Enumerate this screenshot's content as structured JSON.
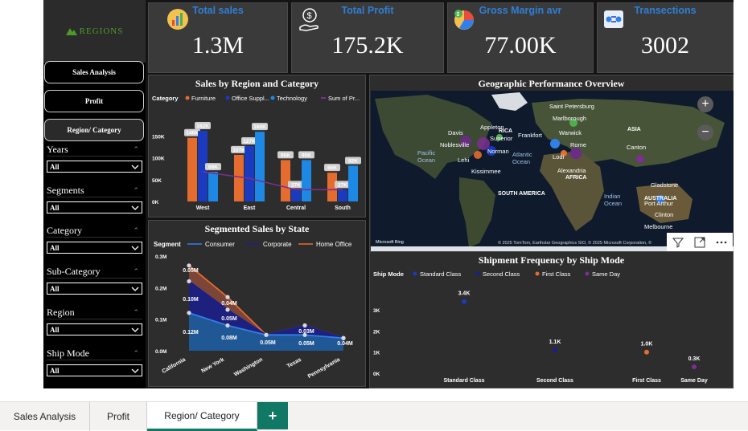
{
  "brand": {
    "logo_text": "Regions",
    "accent": "#4d9a2b"
  },
  "nav": {
    "buttons": [
      "Sales Analysis",
      "Profit",
      "Region/ Category"
    ],
    "active": "Region/ Category"
  },
  "slicers": [
    {
      "title": "Years",
      "value": "All"
    },
    {
      "title": "Segments",
      "value": "All"
    },
    {
      "title": "Category",
      "value": "All"
    },
    {
      "title": "Sub-Category",
      "value": "All"
    },
    {
      "title": "Region",
      "value": "All"
    },
    {
      "title": "Ship Mode",
      "value": "All"
    }
  ],
  "kpis": [
    {
      "title": "Total sales",
      "value": "1.3M",
      "icon": "chart-icon"
    },
    {
      "title": "Total Profit",
      "value": "175.2K",
      "icon": "money-hand-icon"
    },
    {
      "title": "Gross Margin avr",
      "value": "77.00K",
      "icon": "margin-icon"
    },
    {
      "title": "Transections",
      "value": "3002",
      "icon": "transaction-icon"
    }
  ],
  "map": {
    "title": "Geographic Performance Overview",
    "labels": [
      "Saint Petersburg",
      "Marlborough",
      "Appleton",
      "Davis",
      "RICA",
      "Frankfort",
      "Warwick",
      "ASIA",
      "Superior",
      "Noblesville",
      "Rome",
      "Canton",
      "Pacific",
      "Ocean",
      "Norman",
      "Atlantic",
      "Ocean",
      "Lodi",
      "Lehi",
      "Kissimmee",
      "Alexandria",
      "AFRICA",
      "SOUTH AMERICA",
      "Indian",
      "Ocean",
      "Gladstone",
      "AUSTRALIA",
      "Port Arthur",
      "Clinton",
      "Melbourne"
    ],
    "attribution": "© 2025 TomTom, Earthstar Geographics SIO, © 2025 Microsoft Corporation, ©",
    "bing": "Microsoft Bing"
  },
  "chart_data": [
    {
      "type": "bar",
      "title": "Sales by Region and Category",
      "legend_title": "Category",
      "categories": [
        "West",
        "East",
        "Central",
        "South"
      ],
      "series": [
        {
          "name": "Furniture",
          "values": [
            146,
            107,
            95,
            66
          ],
          "labels": [
            "146K",
            "107K",
            "95K",
            "66K"
          ]
        },
        {
          "name": "Office Suppl...",
          "values": [
            162,
            127,
            27,
            27
          ],
          "labels": [
            "162K",
            "127K",
            "27K",
            "27K"
          ]
        },
        {
          "name": "Technology",
          "values": [
            68,
            160,
            95,
            82
          ],
          "labels": [
            "68K",
            "160K",
            "95K",
            "82K"
          ]
        }
      ],
      "line": {
        "name": "Sum of Pr...",
        "values": [
          68,
          53,
          27,
          27
        ],
        "labels": [
          "68K",
          "53K",
          "27K",
          "27K"
        ]
      },
      "y_ticks": [
        "0K",
        "50K",
        "100K",
        "150K"
      ],
      "ylim": [
        0,
        175
      ],
      "colors": [
        "#e46c2e",
        "#1a3bc0",
        "#1e88e5",
        "#7a2f91"
      ]
    },
    {
      "type": "area",
      "title": "Segmented Sales by State",
      "legend_title": "Segment",
      "categories": [
        "California",
        "New York",
        "Washington",
        "Texas",
        "Pennsylvania"
      ],
      "series": [
        {
          "name": "Consumer",
          "values": [
            0.12,
            0.08,
            0.05,
            0.05,
            0.04
          ],
          "labels": [
            "0.12M",
            "0.08M",
            "0.05M",
            "0.05M",
            "0.04M"
          ]
        },
        {
          "name": "Corporate",
          "values": [
            0.1,
            0.05,
            0.0,
            0.03,
            0.0
          ],
          "labels": [
            "0.10M",
            "0.05M",
            "",
            "0.03M",
            ""
          ]
        },
        {
          "name": "Home Office",
          "values": [
            0.05,
            0.04,
            0.0,
            0.0,
            0.0
          ],
          "labels": [
            "0.05M",
            "0.04M",
            "",
            "",
            ""
          ]
        }
      ],
      "y_ticks": [
        "0.0M",
        "0.1M",
        "0.2M",
        "0.3M"
      ],
      "ylim": [
        0,
        0.3
      ],
      "colors": [
        "#2f80ed",
        "#1b1f8c",
        "#e46c2e"
      ]
    },
    {
      "type": "scatter",
      "title": "Shipment Frequency by Ship Mode",
      "legend_title": "Ship Mode",
      "categories": [
        "Standard Class",
        "Second Class",
        "First Class",
        "Same Day"
      ],
      "series": [
        {
          "name": "Standard Class",
          "values": [
            3400
          ],
          "label": "3.4K"
        },
        {
          "name": "Second Class",
          "values": [
            1100
          ],
          "label": "1.1K"
        },
        {
          "name": "First Class",
          "values": [
            1000
          ],
          "label": "1.0K"
        },
        {
          "name": "Same Day",
          "values": [
            300
          ],
          "label": "0.3K"
        }
      ],
      "y_ticks": [
        "0K",
        "1K",
        "2K",
        "3K"
      ],
      "ylim": [
        0,
        3500
      ],
      "colors": [
        "#1a3bc0",
        "#1b1f8c",
        "#e46c2e",
        "#7a2f91"
      ]
    }
  ],
  "tabs": [
    {
      "label": "Sales Analysis"
    },
    {
      "label": "Profit"
    },
    {
      "label": "Region/ Category"
    }
  ],
  "add_tab": "+"
}
